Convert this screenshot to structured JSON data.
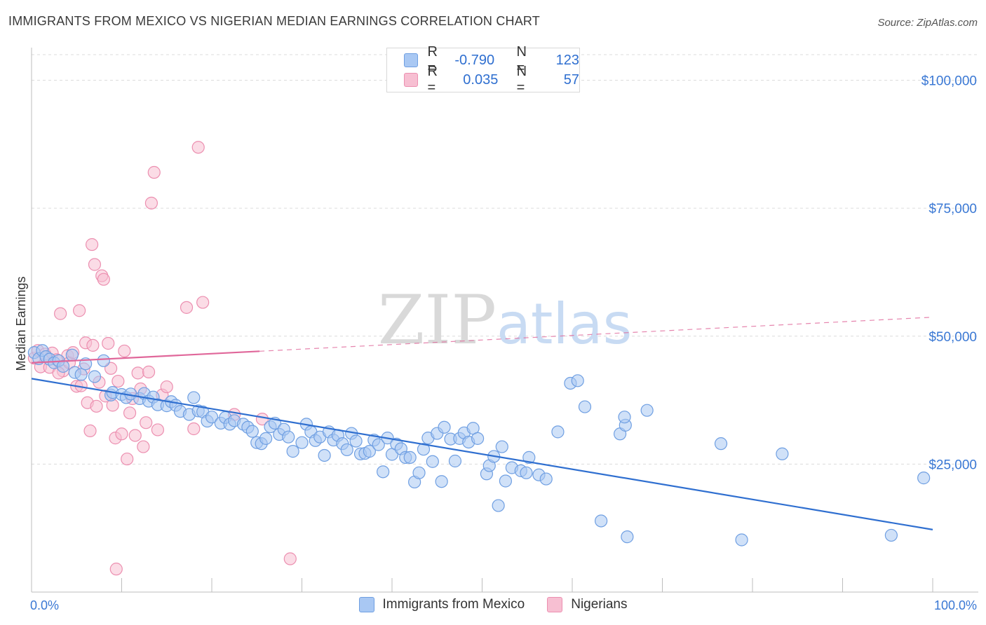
{
  "header": {
    "title": "IMMIGRANTS FROM MEXICO VS NIGERIAN MEDIAN EARNINGS CORRELATION CHART",
    "source": "Source: ZipAtlas.com"
  },
  "watermark": {
    "zip": "ZIP",
    "atlas": "atlas"
  },
  "stats_legend": [
    {
      "r_label": "R =",
      "r_value": "-0.790",
      "n_label": "N =",
      "n_value": "123",
      "color": "#7aa7e8"
    },
    {
      "r_label": "R =",
      "r_value": "0.035",
      "n_label": "N =",
      "n_value": "57",
      "color": "#f29ab7"
    }
  ],
  "colors": {
    "blue_fill": "#a9c8f3",
    "blue_stroke": "#6f9fe2",
    "blue_line": "#2f6fd0",
    "pink_fill": "#f7bfd2",
    "pink_stroke": "#ec8fb0",
    "pink_line": "#e0679a",
    "axis_text": "#3a78d4",
    "grid": "#dcdcdc"
  },
  "chart_data": {
    "type": "scatter",
    "title": "IMMIGRANTS FROM MEXICO VS NIGERIAN MEDIAN EARNINGS CORRELATION CHART",
    "xlabel": "",
    "ylabel": "Median Earnings",
    "xlim": [
      0,
      100
    ],
    "ylim": [
      0,
      105000
    ],
    "x_tick_labels": [
      "0.0%",
      "100.0%"
    ],
    "y_ticks": [
      25000,
      50000,
      75000,
      100000
    ],
    "y_tick_labels": [
      "$25,000",
      "$50,000",
      "$75,000",
      "$100,000"
    ],
    "grid": true,
    "legend_position": "bottom",
    "series": [
      {
        "name": "Immigrants from Mexico",
        "r": -0.79,
        "n": 123,
        "trend": {
          "x": [
            0,
            100
          ],
          "y": [
            41700,
            12200
          ],
          "solid_to": 100
        },
        "points": [
          [
            0.3,
            46800
          ],
          [
            0.8,
            45600
          ],
          [
            1.2,
            47200
          ],
          [
            1.6,
            46000
          ],
          [
            2,
            45500
          ],
          [
            2.5,
            44800
          ],
          [
            3,
            45200
          ],
          [
            3.5,
            44100
          ],
          [
            4.5,
            46300
          ],
          [
            4.8,
            42900
          ],
          [
            5.5,
            42500
          ],
          [
            6,
            44600
          ],
          [
            7,
            42100
          ],
          [
            8,
            45200
          ],
          [
            8.8,
            38500
          ],
          [
            9,
            39000
          ],
          [
            10,
            38600
          ],
          [
            10.5,
            38000
          ],
          [
            11,
            38700
          ],
          [
            12,
            37800
          ],
          [
            12.5,
            38800
          ],
          [
            13,
            37300
          ],
          [
            13.5,
            38100
          ],
          [
            14,
            36600
          ],
          [
            15,
            36400
          ],
          [
            15.5,
            37200
          ],
          [
            16,
            36500
          ],
          [
            16.5,
            35300
          ],
          [
            17.5,
            34700
          ],
          [
            18,
            38000
          ],
          [
            18.5,
            35400
          ],
          [
            19,
            35200
          ],
          [
            19.5,
            33400
          ],
          [
            20,
            34200
          ],
          [
            21,
            33000
          ],
          [
            21.5,
            34100
          ],
          [
            22,
            32800
          ],
          [
            22.5,
            33500
          ],
          [
            23.5,
            32800
          ],
          [
            24,
            32200
          ],
          [
            24.5,
            31400
          ],
          [
            25,
            29200
          ],
          [
            25.5,
            29000
          ],
          [
            26,
            30000
          ],
          [
            26.5,
            32300
          ],
          [
            27,
            33000
          ],
          [
            27.5,
            30800
          ],
          [
            28,
            31800
          ],
          [
            28.5,
            30300
          ],
          [
            29,
            27500
          ],
          [
            30,
            29200
          ],
          [
            30.5,
            32800
          ],
          [
            31,
            31300
          ],
          [
            31.5,
            29600
          ],
          [
            32,
            30300
          ],
          [
            32.5,
            26700
          ],
          [
            33,
            31300
          ],
          [
            33.5,
            29700
          ],
          [
            34,
            30600
          ],
          [
            34.5,
            29000
          ],
          [
            35,
            27800
          ],
          [
            35.5,
            31000
          ],
          [
            36,
            29500
          ],
          [
            36.5,
            27000
          ],
          [
            37,
            27100
          ],
          [
            37.5,
            27500
          ],
          [
            38,
            29700
          ],
          [
            38.5,
            28800
          ],
          [
            39,
            23500
          ],
          [
            39.5,
            30100
          ],
          [
            40,
            26900
          ],
          [
            40.5,
            28900
          ],
          [
            41,
            28000
          ],
          [
            41.5,
            26300
          ],
          [
            42,
            26300
          ],
          [
            42.5,
            21500
          ],
          [
            43,
            23300
          ],
          [
            43.5,
            27900
          ],
          [
            44,
            30100
          ],
          [
            44.5,
            25500
          ],
          [
            45,
            31000
          ],
          [
            45.5,
            21600
          ],
          [
            45.8,
            32200
          ],
          [
            46.5,
            29900
          ],
          [
            47,
            25600
          ],
          [
            47.5,
            30000
          ],
          [
            48,
            31100
          ],
          [
            48.5,
            29300
          ],
          [
            49,
            32000
          ],
          [
            49.5,
            30000
          ],
          [
            50.5,
            23100
          ],
          [
            50.8,
            24700
          ],
          [
            51.3,
            26500
          ],
          [
            51.8,
            16900
          ],
          [
            52.2,
            28400
          ],
          [
            52.6,
            21700
          ],
          [
            53.3,
            24300
          ],
          [
            54.3,
            23700
          ],
          [
            54.9,
            23300
          ],
          [
            55.2,
            26300
          ],
          [
            56.3,
            22900
          ],
          [
            57.1,
            22100
          ],
          [
            58.4,
            31300
          ],
          [
            59.8,
            40800
          ],
          [
            60.6,
            41300
          ],
          [
            61.4,
            36200
          ],
          [
            63.2,
            13900
          ],
          [
            65.3,
            30900
          ],
          [
            65.9,
            32600
          ],
          [
            66.1,
            10800
          ],
          [
            65.8,
            34200
          ],
          [
            68.3,
            35500
          ],
          [
            76.5,
            29000
          ],
          [
            78.8,
            10200
          ],
          [
            83.3,
            27000
          ],
          [
            95.4,
            11100
          ],
          [
            99,
            22300
          ]
        ]
      },
      {
        "name": "Nigerians",
        "r": 0.035,
        "n": 57,
        "trend": {
          "x": [
            0,
            100
          ],
          "y": [
            44800,
            53700
          ],
          "solid_to": 25.3
        },
        "points": [
          [
            0.3,
            45700
          ],
          [
            0.7,
            47200
          ],
          [
            1,
            44000
          ],
          [
            1.5,
            46500
          ],
          [
            2,
            43900
          ],
          [
            2.3,
            46700
          ],
          [
            2.8,
            45400
          ],
          [
            3.2,
            54400
          ],
          [
            3.5,
            43200
          ],
          [
            4,
            46200
          ],
          [
            4.2,
            44800
          ],
          [
            4.6,
            46800
          ],
          [
            5,
            40200
          ],
          [
            5.3,
            55000
          ],
          [
            5.5,
            40300
          ],
          [
            5.8,
            43600
          ],
          [
            6,
            48700
          ],
          [
            6.2,
            37000
          ],
          [
            6.5,
            31500
          ],
          [
            6.8,
            48200
          ],
          [
            7,
            64000
          ],
          [
            7.2,
            36300
          ],
          [
            7.5,
            41000
          ],
          [
            7.8,
            61800
          ],
          [
            8,
            61100
          ],
          [
            8.2,
            38300
          ],
          [
            8.5,
            48600
          ],
          [
            8.8,
            43700
          ],
          [
            9,
            36500
          ],
          [
            9.3,
            30100
          ],
          [
            9.6,
            41200
          ],
          [
            10,
            30900
          ],
          [
            10.3,
            47100
          ],
          [
            10.6,
            26000
          ],
          [
            10.9,
            35000
          ],
          [
            11.2,
            37800
          ],
          [
            11.5,
            30600
          ],
          [
            11.8,
            42800
          ],
          [
            12.1,
            39700
          ],
          [
            12.4,
            28400
          ],
          [
            12.7,
            33100
          ],
          [
            13,
            43000
          ],
          [
            13.3,
            76000
          ],
          [
            13.6,
            82000
          ],
          [
            14,
            31700
          ],
          [
            14.5,
            38500
          ],
          [
            15,
            40100
          ],
          [
            17.2,
            55600
          ],
          [
            18,
            31900
          ],
          [
            18.5,
            86900
          ],
          [
            19,
            56600
          ],
          [
            22.5,
            34700
          ],
          [
            25.6,
            33800
          ],
          [
            28.7,
            6500
          ],
          [
            6.7,
            67900
          ],
          [
            3,
            42800
          ],
          [
            9.4,
            4500
          ]
        ]
      }
    ]
  }
}
